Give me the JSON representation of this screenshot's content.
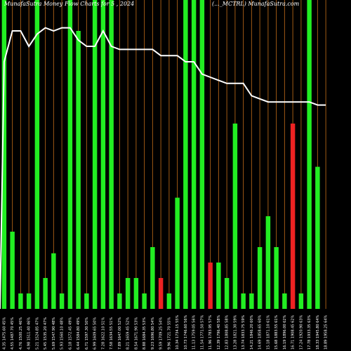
{
  "chart_data": {
    "type": "bar",
    "title_left": "MunafaSutra  Money Flow  Charts for 5 , 2024",
    "title_right": "(..._MCTRL)  MunafaSutra.com",
    "colors": {
      "background": "#000000",
      "up": "#22ee22",
      "down": "#ee2222",
      "grid": "#a05a14",
      "line": "#ffffff"
    },
    "bar_scale": [
      0,
      100
    ],
    "grid": true,
    "categories": [
      "4.35 1475.60 45%",
      "4.55 1487.70 45%",
      "4.76 1500.25 46%",
      "4.98 1511.40 46%",
      "5.21 1524.85 47%",
      "5.45 1535.20 47%",
      "5.69 1547.90 48%",
      "5.93 1560.10 48%",
      "6.18 1572.45 49%",
      "6.44 1584.80 49%",
      "6.71 1597.30 50%",
      "6.99 1609.65 50%",
      "7.28 1622.10 51%",
      "7.58 1634.55 51%",
      "7.89 1647.00 52%",
      "8.21 1659.45 52%",
      "8.54 1671.90 53%",
      "8.88 1684.35 53%",
      "9.23 1696.80 54%",
      "9.59 1709.25 54%",
      "9.96 1721.70 55%",
      "10.34 1734.15 55%",
      "10.73 1746.60 56%",
      "11.13 1759.05 56%",
      "11.54 1771.50 57%",
      "11.96 1783.95 57%",
      "12.39 1796.40 58%",
      "12.83 1808.85 58%",
      "13.28 1821.30 59%",
      "13.74 1833.75 59%",
      "14.21 1846.20 60%",
      "14.69 1858.65 60%",
      "15.18 1871.10 61%",
      "15.68 1883.55 61%",
      "16.19 1896.00 62%",
      "16.71 1908.45 62%",
      "17.24 1920.90 63%",
      "17.78 1933.35 63%",
      "18.33 1945.80 64%",
      "18.89 1958.25 64%"
    ],
    "series": [
      {
        "values": [
          100,
          25,
          5,
          5,
          100,
          10,
          18,
          5,
          100,
          90,
          5,
          100,
          100,
          100,
          5,
          10,
          10,
          5,
          20,
          10,
          5,
          36,
          100,
          100,
          100,
          15,
          15,
          10,
          60,
          5,
          5,
          20,
          30,
          20,
          5,
          60,
          5,
          100,
          46,
          0
        ],
        "colors": [
          "up",
          "up",
          "up",
          "up",
          "up",
          "up",
          "up",
          "up",
          "up",
          "up",
          "up",
          "up",
          "up",
          "up",
          "up",
          "up",
          "up",
          "up",
          "up",
          "down",
          "up",
          "up",
          "up",
          "up",
          "up",
          "down",
          "up",
          "up",
          "up",
          "up",
          "up",
          "up",
          "up",
          "up",
          "up",
          "down",
          "up",
          "up",
          "up",
          "up"
        ]
      }
    ],
    "line": {
      "values": [
        80,
        90,
        90,
        85,
        89,
        91,
        90,
        91,
        91,
        87,
        85,
        85,
        90,
        85,
        84,
        84,
        84,
        84,
        84,
        82,
        82,
        82,
        80,
        80,
        76,
        75,
        74,
        73,
        73,
        73,
        69,
        68,
        67,
        67,
        67,
        67,
        67,
        67,
        66,
        66
      ],
      "range": [
        0,
        100
      ]
    }
  }
}
